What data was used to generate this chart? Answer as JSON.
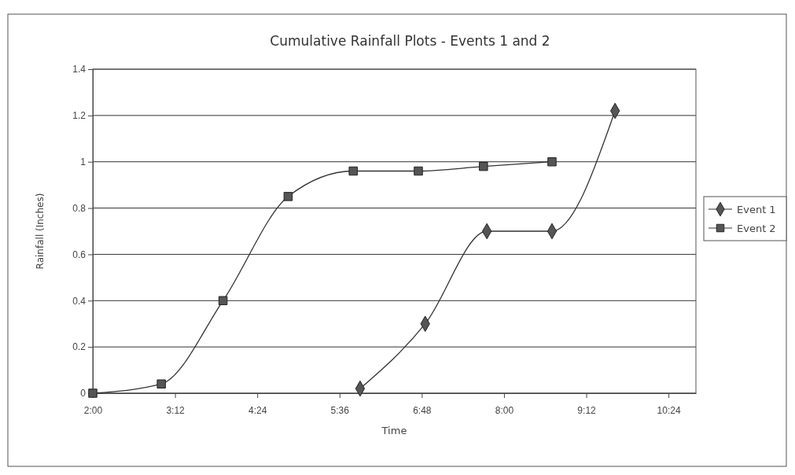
{
  "chart_data": {
    "type": "line",
    "title": "Cumulative Rainfall Plots - Events 1 and 2",
    "xlabel": "Time",
    "ylabel": "Rainfall (Inches)",
    "xlim": [
      2,
      10.8
    ],
    "xticks": [
      {
        "value": 2,
        "label": "2:00"
      },
      {
        "value": 3.2,
        "label": "3:12"
      },
      {
        "value": 4.4,
        "label": "4:24"
      },
      {
        "value": 5.6,
        "label": "5:36"
      },
      {
        "value": 6.8,
        "label": "6:48"
      },
      {
        "value": 8,
        "label": "8:00"
      },
      {
        "value": 9.2,
        "label": "9:12"
      },
      {
        "value": 10.4,
        "label": "10:24"
      }
    ],
    "ylim": [
      0,
      1.4
    ],
    "yticks": [
      0,
      0.2,
      0.4,
      0.6,
      0.8,
      1,
      1.2,
      1.4
    ],
    "grid": "y",
    "legend": "right",
    "series": [
      {
        "name": "Event 1",
        "color": "#555555",
        "marker": "diamond",
        "x": [
          5.9,
          6.85,
          7.75,
          8.7,
          9.62
        ],
        "values": [
          0.02,
          0.3,
          0.7,
          0.7,
          1.22
        ]
      },
      {
        "name": "Event 2",
        "color": "#555555",
        "marker": "square",
        "x": [
          2,
          3,
          3.9,
          4.85,
          5.8,
          6.75,
          7.7,
          8.7
        ],
        "values": [
          0,
          0.04,
          0.4,
          0.85,
          0.96,
          0.96,
          0.98,
          1.0
        ]
      }
    ]
  }
}
